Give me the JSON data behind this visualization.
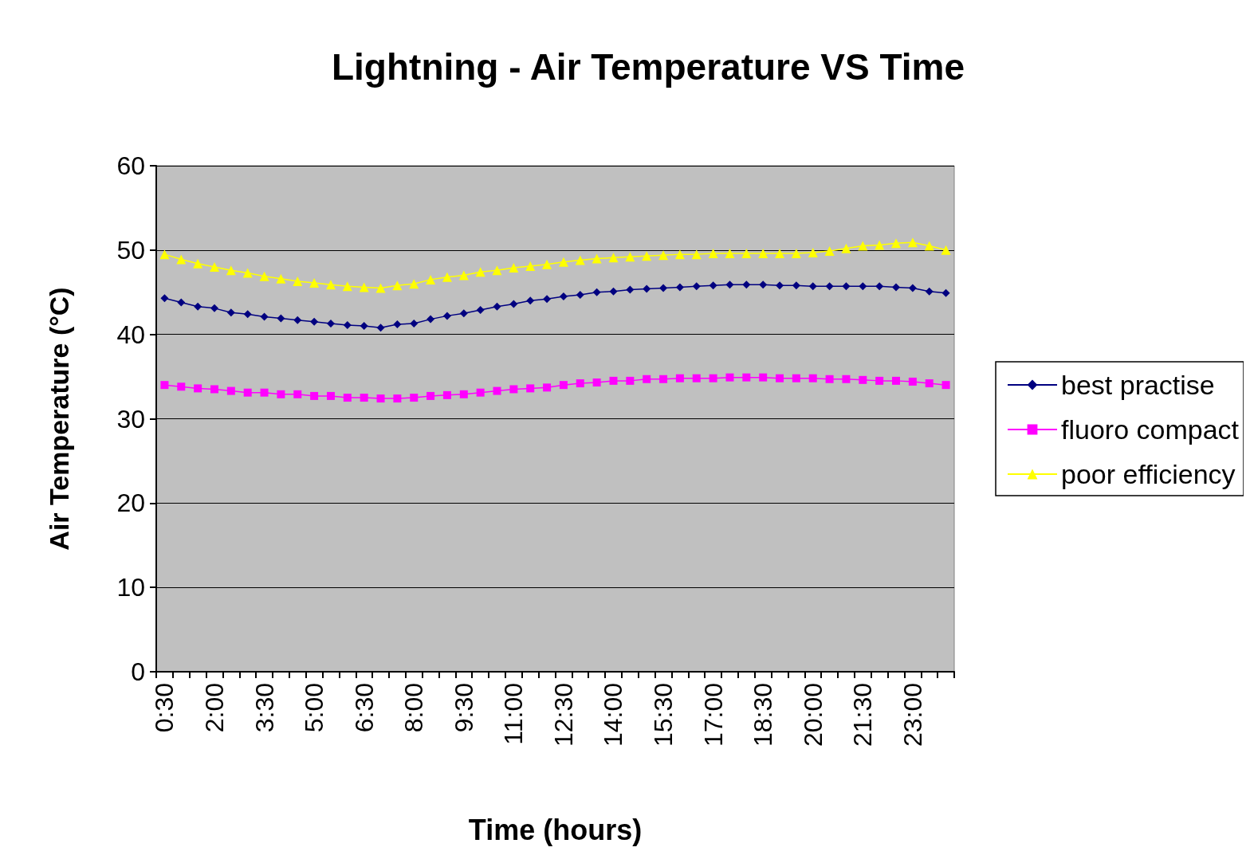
{
  "chart_data": {
    "type": "line",
    "title": "Lightning - Air Temperature VS Time",
    "xlabel": "Time (hours)",
    "ylabel": "Air Temperature (°C)",
    "categories": [
      "0:30",
      null,
      null,
      "2:00",
      null,
      null,
      "3:30",
      null,
      null,
      "5:00",
      null,
      null,
      "6:30",
      null,
      null,
      "8:00",
      null,
      null,
      "9:30",
      null,
      null,
      "11:00",
      null,
      null,
      "12:30",
      null,
      null,
      "14:00",
      null,
      null,
      "15:30",
      null,
      null,
      "17:00",
      null,
      null,
      "18:30",
      null,
      null,
      "20:00",
      null,
      null,
      "21:30",
      null,
      null,
      "23:00",
      null,
      null
    ],
    "series": [
      {
        "name": "best practise",
        "color": "#000080",
        "marker": "diamond",
        "values": [
          44.3,
          43.8,
          43.3,
          43.1,
          42.6,
          42.4,
          42.1,
          41.9,
          41.7,
          41.5,
          41.3,
          41.1,
          41.0,
          40.8,
          41.2,
          41.3,
          41.8,
          42.2,
          42.5,
          42.9,
          43.3,
          43.6,
          44.0,
          44.2,
          44.5,
          44.7,
          45.0,
          45.1,
          45.3,
          45.4,
          45.5,
          45.6,
          45.7,
          45.8,
          45.9,
          45.9,
          45.9,
          45.8,
          45.8,
          45.7,
          45.7,
          45.7,
          45.7,
          45.7,
          45.6,
          45.5,
          45.1,
          44.9
        ]
      },
      {
        "name": "fluoro compact",
        "color": "#ff00ff",
        "marker": "square",
        "values": [
          34.0,
          33.8,
          33.6,
          33.5,
          33.3,
          33.1,
          33.1,
          32.9,
          32.9,
          32.7,
          32.7,
          32.5,
          32.5,
          32.4,
          32.4,
          32.5,
          32.7,
          32.8,
          32.9,
          33.1,
          33.3,
          33.5,
          33.6,
          33.7,
          34.0,
          34.2,
          34.3,
          34.5,
          34.5,
          34.7,
          34.7,
          34.8,
          34.8,
          34.8,
          34.9,
          34.9,
          34.9,
          34.8,
          34.8,
          34.8,
          34.7,
          34.7,
          34.6,
          34.5,
          34.5,
          34.4,
          34.2,
          34.0
        ]
      },
      {
        "name": "poor efficiency",
        "color": "#ffff00",
        "marker": "triangle",
        "values": [
          49.5,
          48.9,
          48.4,
          48.0,
          47.6,
          47.3,
          46.9,
          46.6,
          46.3,
          46.1,
          45.9,
          45.7,
          45.6,
          45.5,
          45.8,
          46.0,
          46.5,
          46.8,
          47.0,
          47.4,
          47.6,
          47.9,
          48.1,
          48.3,
          48.6,
          48.8,
          49.0,
          49.1,
          49.2,
          49.3,
          49.4,
          49.5,
          49.5,
          49.6,
          49.6,
          49.6,
          49.6,
          49.6,
          49.6,
          49.7,
          49.9,
          50.2,
          50.5,
          50.6,
          50.8,
          50.9,
          50.5,
          50.0
        ]
      }
    ],
    "ylim": [
      0,
      60
    ],
    "yticks": [
      0,
      10,
      20,
      30,
      40,
      50,
      60
    ],
    "grid": "y",
    "legend": "right"
  }
}
